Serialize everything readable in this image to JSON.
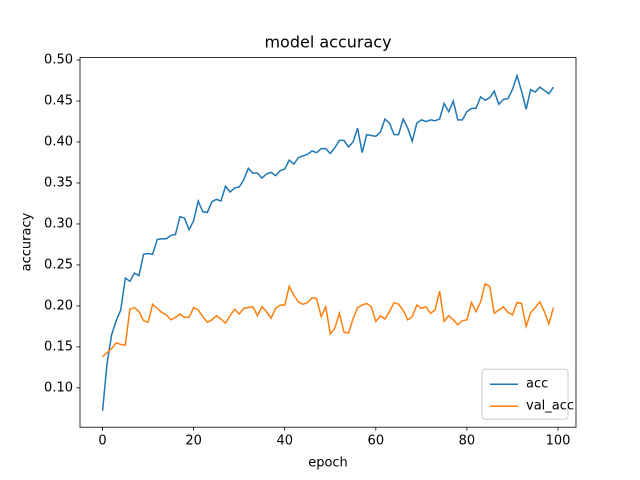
{
  "chart_data": {
    "type": "line",
    "title": "model accuracy",
    "x_label": "epoch",
    "y_label": "accuracy",
    "x": [
      0,
      1,
      2,
      3,
      4,
      5,
      6,
      7,
      8,
      9,
      10,
      11,
      12,
      13,
      14,
      15,
      16,
      17,
      18,
      19,
      20,
      21,
      22,
      23,
      24,
      25,
      26,
      27,
      28,
      29,
      30,
      31,
      32,
      33,
      34,
      35,
      36,
      37,
      38,
      39,
      40,
      41,
      42,
      43,
      44,
      45,
      46,
      47,
      48,
      49,
      50,
      51,
      52,
      53,
      54,
      55,
      56,
      57,
      58,
      59,
      60,
      61,
      62,
      63,
      64,
      65,
      66,
      67,
      68,
      69,
      70,
      71,
      72,
      73,
      74,
      75,
      76,
      77,
      78,
      79,
      80,
      81,
      82,
      83,
      84,
      85,
      86,
      87,
      88,
      89,
      90,
      91,
      92,
      93,
      94,
      95,
      96,
      97,
      98,
      99
    ],
    "series": [
      {
        "name": "acc",
        "color": "#1f77b4",
        "values": [
          0.072,
          0.13,
          0.165,
          0.182,
          0.195,
          0.234,
          0.23,
          0.24,
          0.237,
          0.263,
          0.264,
          0.263,
          0.281,
          0.282,
          0.282,
          0.286,
          0.287,
          0.309,
          0.307,
          0.293,
          0.304,
          0.328,
          0.315,
          0.314,
          0.327,
          0.33,
          0.328,
          0.346,
          0.339,
          0.344,
          0.345,
          0.354,
          0.368,
          0.362,
          0.362,
          0.356,
          0.361,
          0.363,
          0.359,
          0.365,
          0.367,
          0.378,
          0.373,
          0.381,
          0.383,
          0.385,
          0.389,
          0.387,
          0.392,
          0.392,
          0.386,
          0.393,
          0.402,
          0.402,
          0.394,
          0.4,
          0.417,
          0.387,
          0.409,
          0.408,
          0.407,
          0.412,
          0.428,
          0.423,
          0.409,
          0.409,
          0.428,
          0.417,
          0.401,
          0.423,
          0.427,
          0.425,
          0.427,
          0.426,
          0.428,
          0.447,
          0.437,
          0.45,
          0.427,
          0.427,
          0.437,
          0.441,
          0.441,
          0.455,
          0.451,
          0.454,
          0.462,
          0.446,
          0.452,
          0.453,
          0.464,
          0.481,
          0.462,
          0.44,
          0.464,
          0.461,
          0.467,
          0.463,
          0.459,
          0.467
        ]
      },
      {
        "name": "val_acc",
        "color": "#ff7f0e",
        "values": [
          0.138,
          0.143,
          0.148,
          0.155,
          0.153,
          0.152,
          0.196,
          0.198,
          0.193,
          0.182,
          0.18,
          0.202,
          0.197,
          0.192,
          0.189,
          0.183,
          0.186,
          0.19,
          0.186,
          0.186,
          0.198,
          0.195,
          0.187,
          0.18,
          0.183,
          0.188,
          0.184,
          0.179,
          0.188,
          0.196,
          0.19,
          0.197,
          0.198,
          0.199,
          0.188,
          0.199,
          0.193,
          0.185,
          0.197,
          0.201,
          0.201,
          0.224,
          0.213,
          0.205,
          0.202,
          0.204,
          0.21,
          0.209,
          0.187,
          0.199,
          0.166,
          0.173,
          0.191,
          0.168,
          0.167,
          0.184,
          0.198,
          0.201,
          0.203,
          0.199,
          0.181,
          0.188,
          0.184,
          0.193,
          0.204,
          0.202,
          0.195,
          0.183,
          0.187,
          0.201,
          0.197,
          0.199,
          0.191,
          0.195,
          0.218,
          0.181,
          0.188,
          0.183,
          0.177,
          0.182,
          0.183,
          0.204,
          0.193,
          0.205,
          0.227,
          0.224,
          0.191,
          0.195,
          0.199,
          0.192,
          0.189,
          0.204,
          0.203,
          0.175,
          0.192,
          0.198,
          0.205,
          0.193,
          0.178,
          0.198
        ]
      }
    ],
    "xlim": [
      -4.95,
      103.95
    ],
    "ylim": [
      0.052,
      0.503
    ],
    "xticks": [
      0,
      20,
      40,
      60,
      80,
      100
    ],
    "yticks": [
      {
        "value": 0.1,
        "label": "0.10"
      },
      {
        "value": 0.15,
        "label": "0.15"
      },
      {
        "value": 0.2,
        "label": "0.20"
      },
      {
        "value": 0.25,
        "label": "0.25"
      },
      {
        "value": 0.3,
        "label": "0.30"
      },
      {
        "value": 0.35,
        "label": "0.35"
      },
      {
        "value": 0.4,
        "label": "0.40"
      },
      {
        "value": 0.45,
        "label": "0.45"
      },
      {
        "value": 0.5,
        "label": "0.50"
      }
    ],
    "grid": false,
    "legend": "lower right"
  }
}
